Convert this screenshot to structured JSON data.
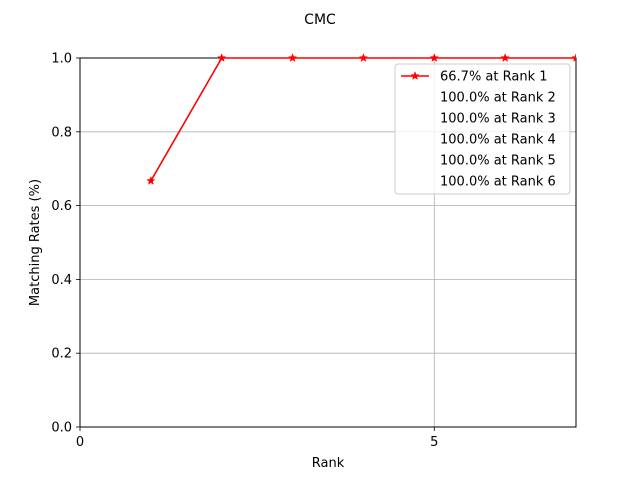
{
  "chart_data": {
    "type": "line",
    "title": "CMC",
    "xlabel": "Rank",
    "ylabel": "Matching Rates (%)",
    "xlim": [
      0,
      7
    ],
    "ylim": [
      0,
      1.0
    ],
    "xticks": [
      0,
      5
    ],
    "xtick_labels": [
      "0",
      "5"
    ],
    "yticks": [
      0,
      0.2,
      0.4,
      0.6,
      0.8,
      1.0
    ],
    "ytick_labels": [
      "0.0",
      "0.2",
      "0.4",
      "0.6",
      "0.8",
      "1.0"
    ],
    "grid": true,
    "legend_position": "top-right",
    "series": [
      {
        "name": "66.7% at Rank 1",
        "color": "#ff0000",
        "marker": "star",
        "x": [
          1,
          2,
          3,
          4,
          5,
          6,
          7
        ],
        "y": [
          0.667,
          1.0,
          1.0,
          1.0,
          1.0,
          1.0,
          1.0
        ]
      }
    ],
    "legend_entries": [
      "66.7% at Rank 1",
      "100.0% at Rank 2",
      "100.0% at Rank 3",
      "100.0% at Rank 4",
      "100.0% at Rank 5",
      "100.0% at Rank 6"
    ]
  }
}
